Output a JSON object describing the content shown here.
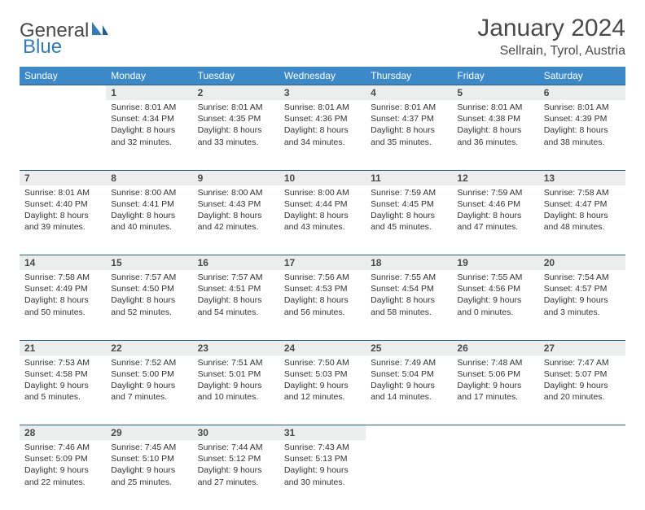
{
  "logo": {
    "text1": "General",
    "text2": "Blue"
  },
  "title": "January 2024",
  "location": "Sellrain, Tyrol, Austria",
  "colors": {
    "header_bg": "#3b89c9",
    "daynum_bg": "#eceded",
    "border": "#2a5f8a",
    "text": "#333333"
  },
  "weekdays": [
    "Sunday",
    "Monday",
    "Tuesday",
    "Wednesday",
    "Thursday",
    "Friday",
    "Saturday"
  ],
  "weeks": [
    [
      null,
      {
        "n": "1",
        "sr": "Sunrise: 8:01 AM",
        "ss": "Sunset: 4:34 PM",
        "d1": "Daylight: 8 hours",
        "d2": "and 32 minutes."
      },
      {
        "n": "2",
        "sr": "Sunrise: 8:01 AM",
        "ss": "Sunset: 4:35 PM",
        "d1": "Daylight: 8 hours",
        "d2": "and 33 minutes."
      },
      {
        "n": "3",
        "sr": "Sunrise: 8:01 AM",
        "ss": "Sunset: 4:36 PM",
        "d1": "Daylight: 8 hours",
        "d2": "and 34 minutes."
      },
      {
        "n": "4",
        "sr": "Sunrise: 8:01 AM",
        "ss": "Sunset: 4:37 PM",
        "d1": "Daylight: 8 hours",
        "d2": "and 35 minutes."
      },
      {
        "n": "5",
        "sr": "Sunrise: 8:01 AM",
        "ss": "Sunset: 4:38 PM",
        "d1": "Daylight: 8 hours",
        "d2": "and 36 minutes."
      },
      {
        "n": "6",
        "sr": "Sunrise: 8:01 AM",
        "ss": "Sunset: 4:39 PM",
        "d1": "Daylight: 8 hours",
        "d2": "and 38 minutes."
      }
    ],
    [
      {
        "n": "7",
        "sr": "Sunrise: 8:01 AM",
        "ss": "Sunset: 4:40 PM",
        "d1": "Daylight: 8 hours",
        "d2": "and 39 minutes."
      },
      {
        "n": "8",
        "sr": "Sunrise: 8:00 AM",
        "ss": "Sunset: 4:41 PM",
        "d1": "Daylight: 8 hours",
        "d2": "and 40 minutes."
      },
      {
        "n": "9",
        "sr": "Sunrise: 8:00 AM",
        "ss": "Sunset: 4:43 PM",
        "d1": "Daylight: 8 hours",
        "d2": "and 42 minutes."
      },
      {
        "n": "10",
        "sr": "Sunrise: 8:00 AM",
        "ss": "Sunset: 4:44 PM",
        "d1": "Daylight: 8 hours",
        "d2": "and 43 minutes."
      },
      {
        "n": "11",
        "sr": "Sunrise: 7:59 AM",
        "ss": "Sunset: 4:45 PM",
        "d1": "Daylight: 8 hours",
        "d2": "and 45 minutes."
      },
      {
        "n": "12",
        "sr": "Sunrise: 7:59 AM",
        "ss": "Sunset: 4:46 PM",
        "d1": "Daylight: 8 hours",
        "d2": "and 47 minutes."
      },
      {
        "n": "13",
        "sr": "Sunrise: 7:58 AM",
        "ss": "Sunset: 4:47 PM",
        "d1": "Daylight: 8 hours",
        "d2": "and 48 minutes."
      }
    ],
    [
      {
        "n": "14",
        "sr": "Sunrise: 7:58 AM",
        "ss": "Sunset: 4:49 PM",
        "d1": "Daylight: 8 hours",
        "d2": "and 50 minutes."
      },
      {
        "n": "15",
        "sr": "Sunrise: 7:57 AM",
        "ss": "Sunset: 4:50 PM",
        "d1": "Daylight: 8 hours",
        "d2": "and 52 minutes."
      },
      {
        "n": "16",
        "sr": "Sunrise: 7:57 AM",
        "ss": "Sunset: 4:51 PM",
        "d1": "Daylight: 8 hours",
        "d2": "and 54 minutes."
      },
      {
        "n": "17",
        "sr": "Sunrise: 7:56 AM",
        "ss": "Sunset: 4:53 PM",
        "d1": "Daylight: 8 hours",
        "d2": "and 56 minutes."
      },
      {
        "n": "18",
        "sr": "Sunrise: 7:55 AM",
        "ss": "Sunset: 4:54 PM",
        "d1": "Daylight: 8 hours",
        "d2": "and 58 minutes."
      },
      {
        "n": "19",
        "sr": "Sunrise: 7:55 AM",
        "ss": "Sunset: 4:56 PM",
        "d1": "Daylight: 9 hours",
        "d2": "and 0 minutes."
      },
      {
        "n": "20",
        "sr": "Sunrise: 7:54 AM",
        "ss": "Sunset: 4:57 PM",
        "d1": "Daylight: 9 hours",
        "d2": "and 3 minutes."
      }
    ],
    [
      {
        "n": "21",
        "sr": "Sunrise: 7:53 AM",
        "ss": "Sunset: 4:58 PM",
        "d1": "Daylight: 9 hours",
        "d2": "and 5 minutes."
      },
      {
        "n": "22",
        "sr": "Sunrise: 7:52 AM",
        "ss": "Sunset: 5:00 PM",
        "d1": "Daylight: 9 hours",
        "d2": "and 7 minutes."
      },
      {
        "n": "23",
        "sr": "Sunrise: 7:51 AM",
        "ss": "Sunset: 5:01 PM",
        "d1": "Daylight: 9 hours",
        "d2": "and 10 minutes."
      },
      {
        "n": "24",
        "sr": "Sunrise: 7:50 AM",
        "ss": "Sunset: 5:03 PM",
        "d1": "Daylight: 9 hours",
        "d2": "and 12 minutes."
      },
      {
        "n": "25",
        "sr": "Sunrise: 7:49 AM",
        "ss": "Sunset: 5:04 PM",
        "d1": "Daylight: 9 hours",
        "d2": "and 14 minutes."
      },
      {
        "n": "26",
        "sr": "Sunrise: 7:48 AM",
        "ss": "Sunset: 5:06 PM",
        "d1": "Daylight: 9 hours",
        "d2": "and 17 minutes."
      },
      {
        "n": "27",
        "sr": "Sunrise: 7:47 AM",
        "ss": "Sunset: 5:07 PM",
        "d1": "Daylight: 9 hours",
        "d2": "and 20 minutes."
      }
    ],
    [
      {
        "n": "28",
        "sr": "Sunrise: 7:46 AM",
        "ss": "Sunset: 5:09 PM",
        "d1": "Daylight: 9 hours",
        "d2": "and 22 minutes."
      },
      {
        "n": "29",
        "sr": "Sunrise: 7:45 AM",
        "ss": "Sunset: 5:10 PM",
        "d1": "Daylight: 9 hours",
        "d2": "and 25 minutes."
      },
      {
        "n": "30",
        "sr": "Sunrise: 7:44 AM",
        "ss": "Sunset: 5:12 PM",
        "d1": "Daylight: 9 hours",
        "d2": "and 27 minutes."
      },
      {
        "n": "31",
        "sr": "Sunrise: 7:43 AM",
        "ss": "Sunset: 5:13 PM",
        "d1": "Daylight: 9 hours",
        "d2": "and 30 minutes."
      },
      null,
      null,
      null
    ]
  ]
}
